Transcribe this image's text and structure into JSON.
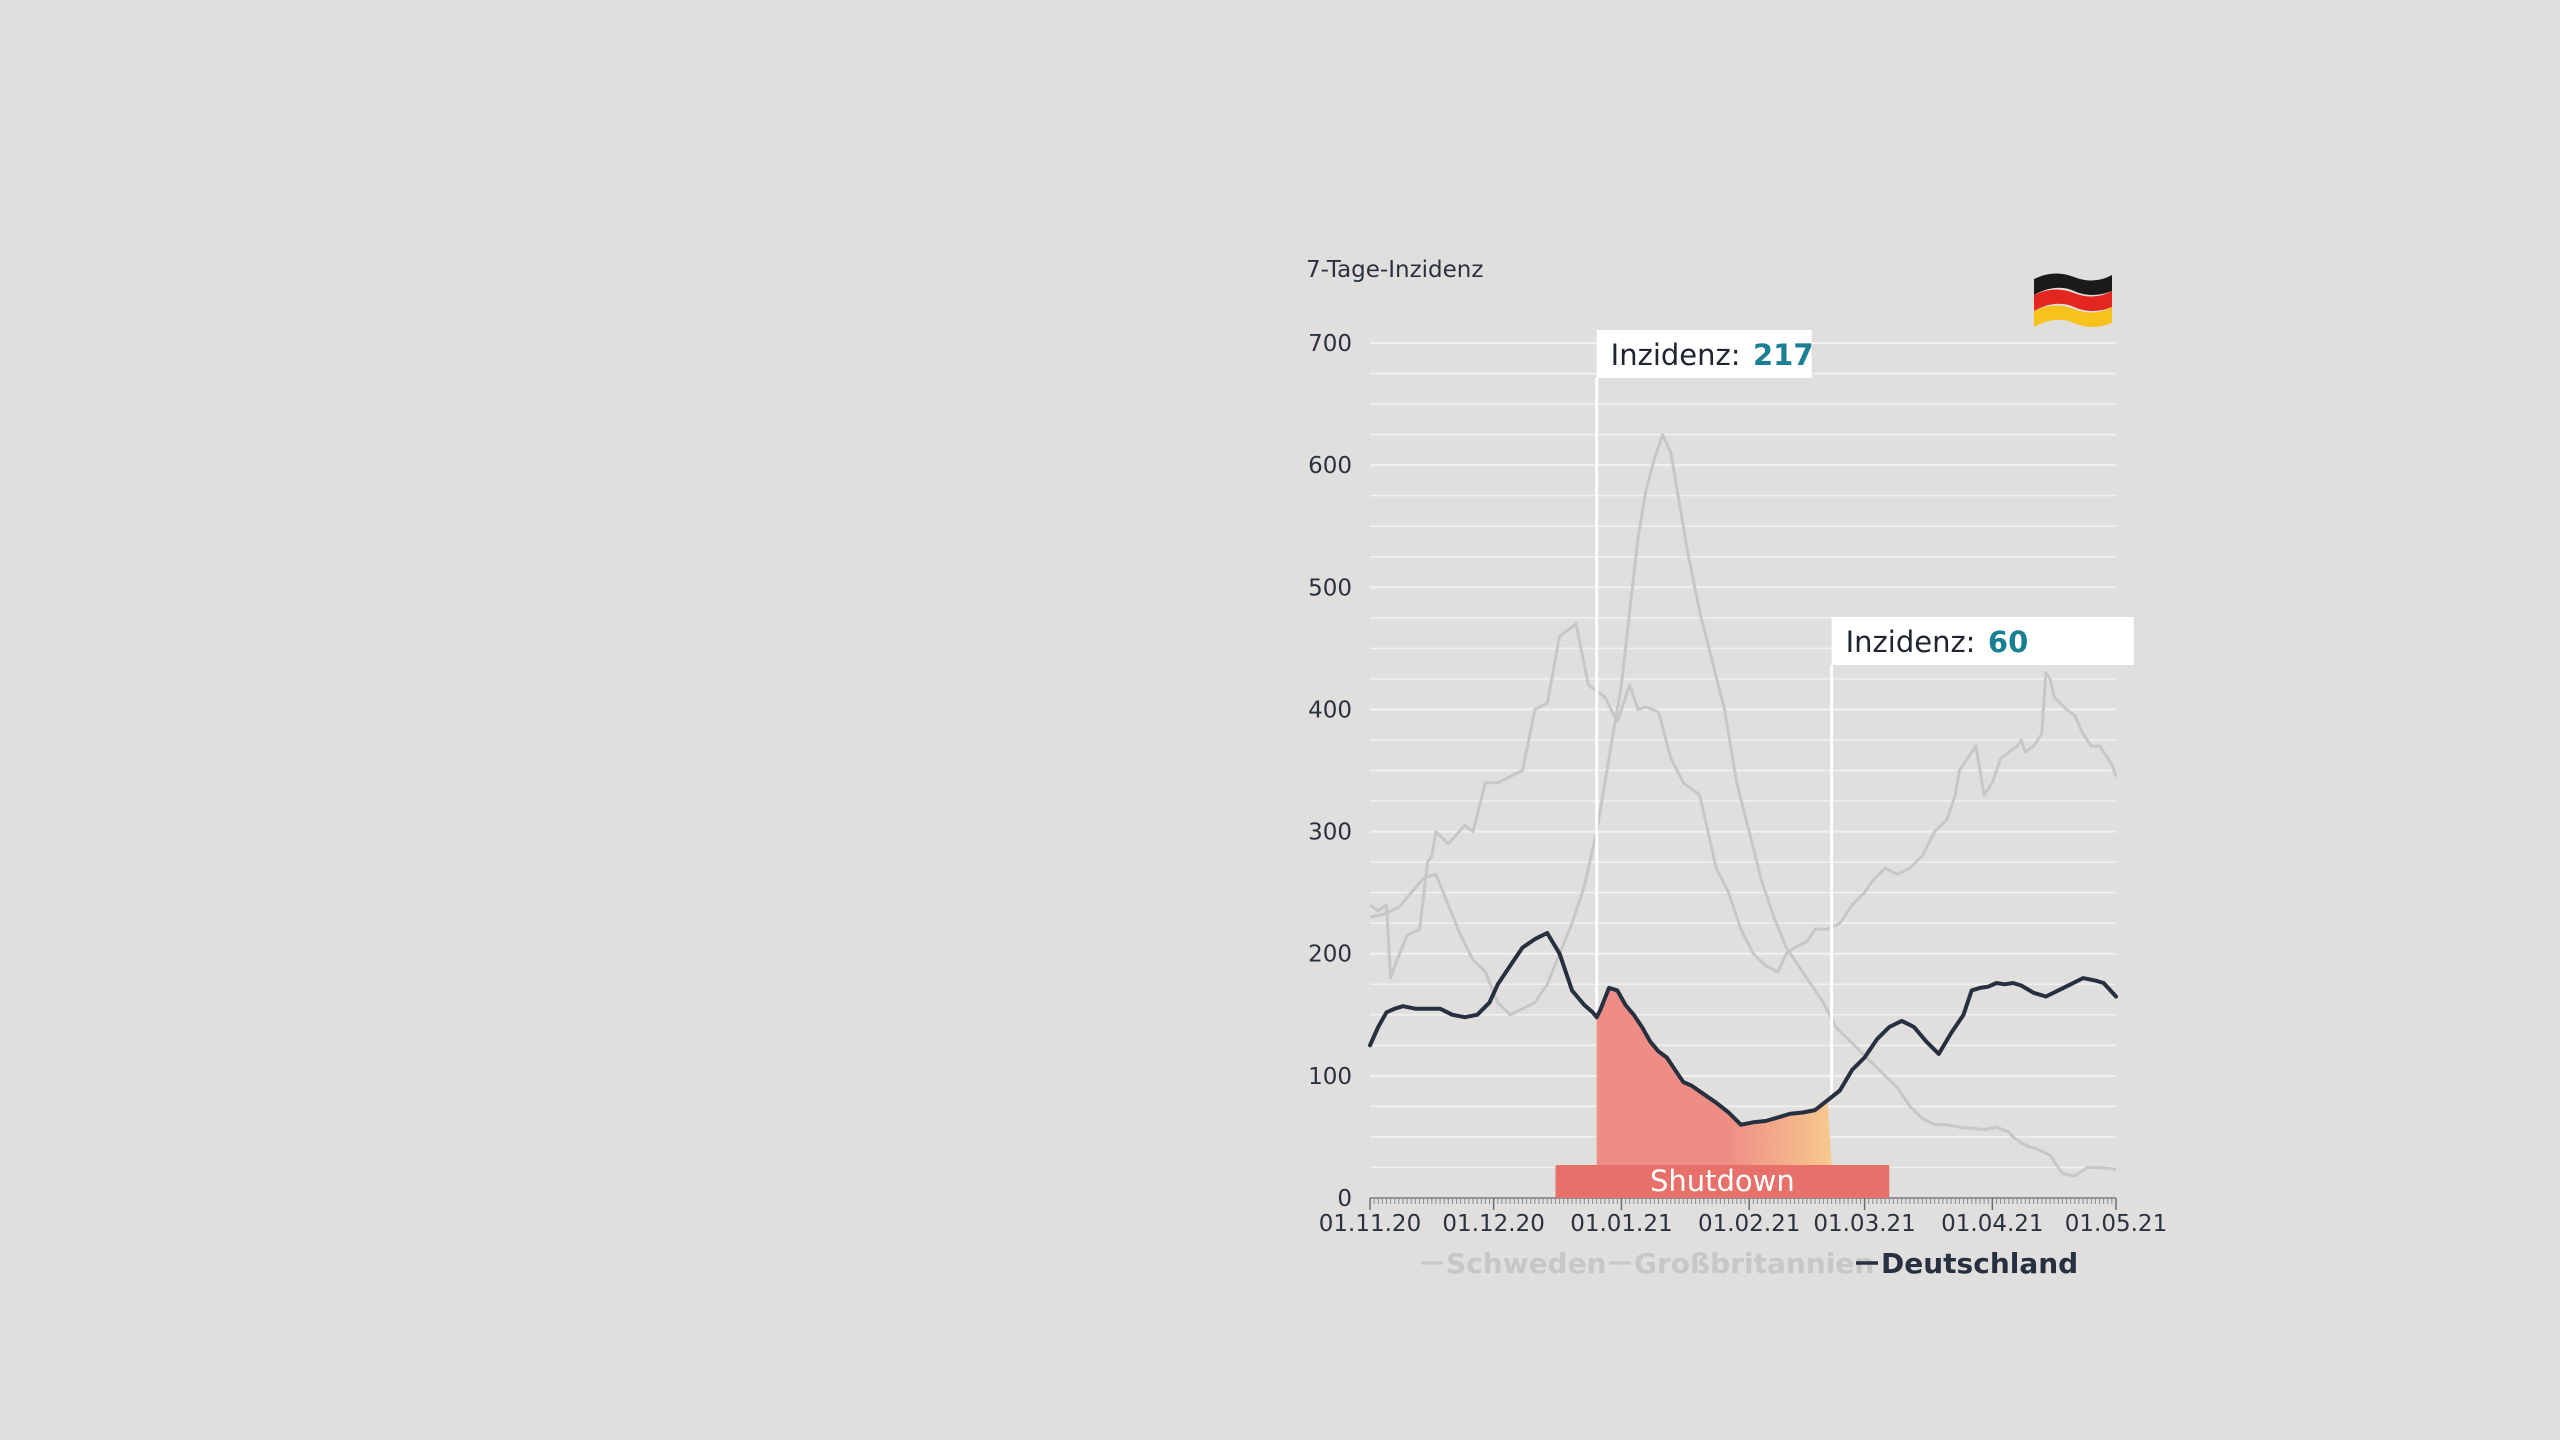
{
  "colors": {
    "background": "#e1dfdd",
    "grid": "#f2f1f0",
    "text": "#2a3240",
    "germany": "#273040",
    "others": "#c9c7c5",
    "callout_value": "#1b7f93",
    "shutdown_bar": "#e8706a",
    "fill_start": "#ee8d86",
    "fill_end": "#f7c98e"
  },
  "chart_data": {
    "type": "line",
    "ylabel": "7-Tage-Inzidenz",
    "ylim": [
      0,
      700
    ],
    "y_ticks": [
      0,
      100,
      200,
      300,
      400,
      500,
      600,
      700
    ],
    "xlim": [
      "2020-11-01",
      "2021-05-01"
    ],
    "x_ticks": [
      "01.11.20",
      "01.12.20",
      "01.01.21",
      "01.02.21",
      "01.03.21",
      "01.04.21",
      "01.05.21"
    ],
    "grid": true,
    "legend": "bottom",
    "series": [
      {
        "name": "Schweden",
        "x": [
          "2020-11-01",
          "2020-11-03",
          "2020-11-05",
          "2020-11-06",
          "2020-11-07",
          "2020-11-10",
          "2020-11-13",
          "2020-11-15",
          "2020-11-16",
          "2020-11-17",
          "2020-11-20",
          "2020-11-24",
          "2020-11-26",
          "2020-11-29",
          "2020-12-02",
          "2020-12-05",
          "2020-12-08",
          "2020-12-11",
          "2020-12-14",
          "2020-12-17",
          "2020-12-21",
          "2020-12-24",
          "2020-12-28",
          "2020-12-31",
          "2021-01-03",
          "2021-01-05",
          "2021-01-07",
          "2021-01-10",
          "2021-01-13",
          "2021-01-16",
          "2021-01-20",
          "2021-01-24",
          "2021-01-27",
          "2021-01-30",
          "2021-02-02",
          "2021-02-05",
          "2021-02-08",
          "2021-02-10",
          "2021-02-12",
          "2021-02-15",
          "2021-02-17",
          "2021-02-20",
          "2021-02-23",
          "2021-02-26",
          "2021-03-01",
          "2021-03-03",
          "2021-03-06",
          "2021-03-09",
          "2021-03-12",
          "2021-03-15",
          "2021-03-18",
          "2021-03-21",
          "2021-03-23",
          "2021-03-24",
          "2021-03-26",
          "2021-03-28",
          "2021-03-30",
          "2021-04-01",
          "2021-04-02",
          "2021-04-03",
          "2021-04-05",
          "2021-04-07",
          "2021-04-08",
          "2021-04-09",
          "2021-04-11",
          "2021-04-13",
          "2021-04-14",
          "2021-04-15",
          "2021-04-16",
          "2021-04-19",
          "2021-04-21",
          "2021-04-23",
          "2021-04-25",
          "2021-04-27",
          "2021-04-29",
          "2021-04-30",
          "2021-05-01"
        ],
        "values": [
          240,
          235,
          240,
          180,
          190,
          215,
          220,
          275,
          280,
          300,
          290,
          305,
          300,
          340,
          340,
          345,
          350,
          400,
          405,
          460,
          470,
          420,
          410,
          390,
          420,
          400,
          402,
          398,
          360,
          340,
          330,
          270,
          250,
          220,
          200,
          190,
          185,
          200,
          205,
          210,
          220,
          220,
          225,
          240,
          250,
          260,
          270,
          265,
          270,
          280,
          300,
          310,
          330,
          350,
          360,
          370,
          330,
          340,
          350,
          360,
          365,
          370,
          375,
          365,
          370,
          380,
          430,
          425,
          410,
          400,
          395,
          380,
          370,
          370,
          360,
          355,
          345
        ]
      },
      {
        "name": "Großbritannien",
        "x": [
          "2020-11-01",
          "2020-11-04",
          "2020-11-08",
          "2020-11-11",
          "2020-11-14",
          "2020-11-17",
          "2020-11-20",
          "2020-11-23",
          "2020-11-26",
          "2020-11-29",
          "2020-12-02",
          "2020-12-05",
          "2020-12-08",
          "2020-12-11",
          "2020-12-14",
          "2020-12-17",
          "2020-12-20",
          "2020-12-23",
          "2020-12-26",
          "2020-12-29",
          "2021-01-01",
          "2021-01-03",
          "2021-01-05",
          "2021-01-07",
          "2021-01-09",
          "2021-01-11",
          "2021-01-13",
          "2021-01-15",
          "2021-01-17",
          "2021-01-20",
          "2021-01-23",
          "2021-01-26",
          "2021-01-29",
          "2021-02-01",
          "2021-02-04",
          "2021-02-07",
          "2021-02-10",
          "2021-02-13",
          "2021-02-16",
          "2021-02-19",
          "2021-02-22",
          "2021-02-25",
          "2021-02-28",
          "2021-03-03",
          "2021-03-06",
          "2021-03-09",
          "2021-03-12",
          "2021-03-15",
          "2021-03-18",
          "2021-03-21",
          "2021-03-24",
          "2021-03-27",
          "2021-03-30",
          "2021-04-02",
          "2021-04-05",
          "2021-04-06",
          "2021-04-08",
          "2021-04-10",
          "2021-04-12",
          "2021-04-15",
          "2021-04-18",
          "2021-04-21",
          "2021-04-24",
          "2021-04-27",
          "2021-04-30",
          "2021-05-01"
        ],
        "values": [
          230,
          232,
          238,
          250,
          262,
          265,
          240,
          215,
          195,
          185,
          160,
          150,
          155,
          160,
          175,
          200,
          225,
          255,
          300,
          360,
          420,
          480,
          540,
          580,
          605,
          625,
          610,
          570,
          530,
          480,
          440,
          400,
          340,
          300,
          260,
          230,
          205,
          190,
          175,
          160,
          140,
          130,
          120,
          110,
          100,
          90,
          75,
          65,
          60,
          60,
          58,
          57,
          56,
          58,
          54,
          50,
          45,
          42,
          40,
          35,
          20,
          18,
          25,
          25,
          24,
          23
        ]
      },
      {
        "name": "Deutschland",
        "x": [
          "2020-11-01",
          "2020-11-03",
          "2020-11-05",
          "2020-11-07",
          "2020-11-09",
          "2020-11-12",
          "2020-11-15",
          "2020-11-18",
          "2020-11-21",
          "2020-11-24",
          "2020-11-27",
          "2020-11-30",
          "2020-12-02",
          "2020-12-05",
          "2020-12-08",
          "2020-12-11",
          "2020-12-14",
          "2020-12-17",
          "2020-12-20",
          "2020-12-23",
          "2020-12-25",
          "2020-12-26",
          "2020-12-27",
          "2020-12-29",
          "2020-12-31",
          "2021-01-02",
          "2021-01-04",
          "2021-01-06",
          "2021-01-08",
          "2021-01-10",
          "2021-01-12",
          "2021-01-14",
          "2021-01-16",
          "2021-01-18",
          "2021-01-21",
          "2021-01-24",
          "2021-01-27",
          "2021-01-30",
          "2021-02-02",
          "2021-02-05",
          "2021-02-08",
          "2021-02-11",
          "2021-02-14",
          "2021-02-17",
          "2021-02-20",
          "2021-02-23",
          "2021-02-26",
          "2021-03-01",
          "2021-03-04",
          "2021-03-07",
          "2021-03-10",
          "2021-03-13",
          "2021-03-16",
          "2021-03-19",
          "2021-03-22",
          "2021-03-25",
          "2021-03-27",
          "2021-03-29",
          "2021-03-31",
          "2021-04-02",
          "2021-04-04",
          "2021-04-06",
          "2021-04-08",
          "2021-04-11",
          "2021-04-14",
          "2021-04-17",
          "2021-04-20",
          "2021-04-23",
          "2021-04-26",
          "2021-04-28",
          "2021-05-01"
        ],
        "values": [
          125,
          140,
          152,
          155,
          157,
          155,
          155,
          155,
          150,
          148,
          150,
          160,
          175,
          190,
          205,
          212,
          217,
          200,
          170,
          158,
          152,
          148,
          155,
          172,
          170,
          158,
          150,
          140,
          128,
          120,
          115,
          105,
          95,
          92,
          85,
          78,
          70,
          60,
          62,
          63,
          66,
          69,
          70,
          72,
          80,
          88,
          105,
          115,
          130,
          140,
          145,
          140,
          128,
          118,
          135,
          150,
          170,
          172,
          173,
          176,
          175,
          176,
          174,
          168,
          165,
          170,
          175,
          180,
          178,
          176,
          165
        ]
      }
    ],
    "annotations": [
      {
        "x": "2020-12-26",
        "label": "Inzidenz:",
        "value": "217"
      },
      {
        "x": "2021-02-21",
        "label": "Inzidenz:",
        "value": "60"
      }
    ],
    "shutdown": {
      "label": "Shutdown",
      "start": "2020-12-16",
      "end": "2021-03-07",
      "fill_from": "2020-12-26",
      "fill_to": "2021-02-21"
    }
  }
}
